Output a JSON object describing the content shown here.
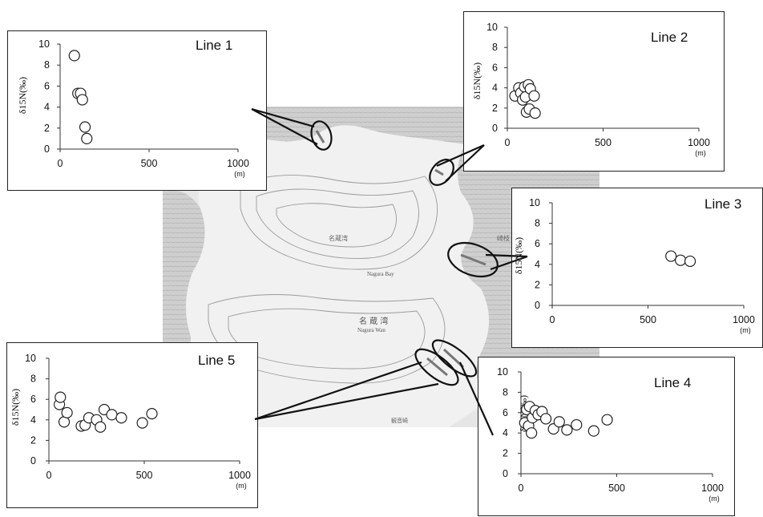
{
  "map": {
    "labels": {
      "bay_en": "Nagura Bay",
      "bay_jp": "名 蔵 湾",
      "bay_romaji": "Nagura Wan",
      "place_a": "名蔵湾",
      "place_b": "崎枝",
      "place_c": "観音崎"
    }
  },
  "chart_data": [
    {
      "type": "scatter",
      "title": "Line 1",
      "ylabel": "δ15N(‰)",
      "x_unit": "(m)",
      "xlim": [
        0,
        1000
      ],
      "ylim": [
        0,
        10
      ],
      "x_ticks": [
        0,
        500,
        1000
      ],
      "y_ticks": [
        0,
        2,
        4,
        6,
        8,
        10
      ],
      "points": [
        {
          "x": 80,
          "y": 8.9
        },
        {
          "x": 100,
          "y": 5.3
        },
        {
          "x": 115,
          "y": 5.3
        },
        {
          "x": 125,
          "y": 4.7
        },
        {
          "x": 140,
          "y": 2.1
        },
        {
          "x": 150,
          "y": 1.0
        }
      ]
    },
    {
      "type": "scatter",
      "title": "Line 2",
      "ylabel": "δ15N(‰)",
      "x_unit": "(m)",
      "xlim": [
        0,
        1000
      ],
      "ylim": [
        0,
        10
      ],
      "x_ticks": [
        0,
        500,
        1000
      ],
      "y_ticks": [
        0,
        2,
        4,
        6,
        8,
        10
      ],
      "points": [
        {
          "x": 40,
          "y": 3.2
        },
        {
          "x": 60,
          "y": 4.0
        },
        {
          "x": 70,
          "y": 3.5
        },
        {
          "x": 80,
          "y": 2.8
        },
        {
          "x": 90,
          "y": 4.1
        },
        {
          "x": 95,
          "y": 3.1
        },
        {
          "x": 100,
          "y": 1.6
        },
        {
          "x": 110,
          "y": 4.3
        },
        {
          "x": 115,
          "y": 1.9
        },
        {
          "x": 120,
          "y": 3.9
        },
        {
          "x": 140,
          "y": 3.2
        },
        {
          "x": 145,
          "y": 1.5
        }
      ]
    },
    {
      "type": "scatter",
      "title": "Line 3",
      "ylabel": "δ15N(‰)",
      "x_unit": "(m)",
      "xlim": [
        0,
        1000
      ],
      "ylim": [
        0,
        10
      ],
      "x_ticks": [
        0,
        500,
        1000
      ],
      "y_ticks": [
        0,
        2,
        4,
        6,
        8,
        10
      ],
      "points": [
        {
          "x": 620,
          "y": 4.8
        },
        {
          "x": 670,
          "y": 4.4
        },
        {
          "x": 720,
          "y": 4.3
        }
      ]
    },
    {
      "type": "scatter",
      "title": "Line 4",
      "ylabel": "δ15N(‰)",
      "x_unit": "(m)",
      "xlim": [
        0,
        1000
      ],
      "ylim": [
        0,
        10
      ],
      "x_ticks": [
        0,
        500,
        1000
      ],
      "y_ticks": [
        0,
        2,
        4,
        6,
        8,
        10
      ],
      "points": [
        {
          "x": 20,
          "y": 5.0
        },
        {
          "x": 30,
          "y": 6.3
        },
        {
          "x": 40,
          "y": 4.7
        },
        {
          "x": 45,
          "y": 6.6
        },
        {
          "x": 55,
          "y": 4.0
        },
        {
          "x": 60,
          "y": 5.5
        },
        {
          "x": 75,
          "y": 6.2
        },
        {
          "x": 90,
          "y": 5.8
        },
        {
          "x": 110,
          "y": 6.1
        },
        {
          "x": 130,
          "y": 5.4
        },
        {
          "x": 170,
          "y": 4.4
        },
        {
          "x": 200,
          "y": 5.1
        },
        {
          "x": 240,
          "y": 4.3
        },
        {
          "x": 290,
          "y": 4.8
        },
        {
          "x": 380,
          "y": 4.2
        },
        {
          "x": 450,
          "y": 5.3
        }
      ]
    },
    {
      "type": "scatter",
      "title": "Line 5",
      "ylabel": "δ15N(‰)",
      "x_unit": "(m)",
      "xlim": [
        0,
        1000
      ],
      "ylim": [
        0,
        10
      ],
      "x_ticks": [
        0,
        500,
        1000
      ],
      "y_ticks": [
        0,
        2,
        4,
        6,
        8,
        10
      ],
      "points": [
        {
          "x": 55,
          "y": 5.5
        },
        {
          "x": 60,
          "y": 6.2
        },
        {
          "x": 80,
          "y": 3.8
        },
        {
          "x": 95,
          "y": 4.7
        },
        {
          "x": 170,
          "y": 3.4
        },
        {
          "x": 190,
          "y": 3.5
        },
        {
          "x": 210,
          "y": 4.2
        },
        {
          "x": 250,
          "y": 4.0
        },
        {
          "x": 270,
          "y": 3.3
        },
        {
          "x": 290,
          "y": 5.0
        },
        {
          "x": 330,
          "y": 4.5
        },
        {
          "x": 380,
          "y": 4.2
        },
        {
          "x": 490,
          "y": 3.7
        },
        {
          "x": 540,
          "y": 4.6
        }
      ]
    }
  ]
}
